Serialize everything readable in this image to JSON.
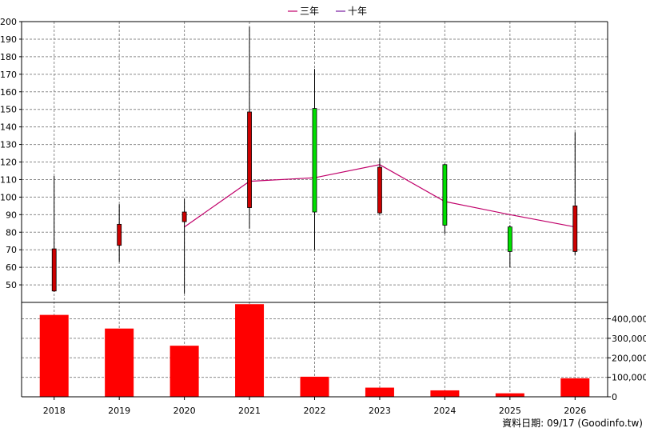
{
  "chart_data": {
    "type": "candlestick",
    "categories": [
      "2018",
      "2019",
      "2020",
      "2021",
      "2022",
      "2023",
      "2024",
      "2025",
      "2026"
    ],
    "price": {
      "ylim": [
        40,
        200
      ],
      "ticks": [
        50,
        60,
        70,
        80,
        90,
        100,
        110,
        120,
        130,
        140,
        150,
        160,
        170,
        180,
        190,
        200
      ],
      "candles": [
        {
          "open": 46.5,
          "close": 70.5,
          "high": 112,
          "low": 46,
          "direction": "up"
        },
        {
          "open": 72.5,
          "close": 84.5,
          "high": 96,
          "low": 63,
          "direction": "up"
        },
        {
          "open": 86,
          "close": 91.5,
          "high": 99,
          "low": 45,
          "direction": "up"
        },
        {
          "open": 94,
          "close": 148.5,
          "high": 197,
          "low": 82,
          "direction": "up"
        },
        {
          "open": 150.5,
          "close": 91.5,
          "high": 173,
          "low": 70,
          "direction": "down"
        },
        {
          "open": 91,
          "close": 117,
          "high": 122,
          "low": 90,
          "direction": "up"
        },
        {
          "open": 118.5,
          "close": 84,
          "high": 119,
          "low": 79,
          "direction": "down"
        },
        {
          "open": 83,
          "close": 69,
          "high": 84,
          "low": 60,
          "direction": "down"
        },
        {
          "open": 69,
          "close": 95,
          "high": 137,
          "low": 67,
          "direction": "up"
        }
      ],
      "series": [
        {
          "name": "三年",
          "color": "#c0006a",
          "values": [
            null,
            null,
            83,
            109,
            111,
            118.5,
            97.5,
            90,
            83
          ]
        },
        {
          "name": "十年",
          "color": "#7a1fa2",
          "values": [
            null,
            null,
            null,
            null,
            null,
            null,
            null,
            null,
            null
          ]
        }
      ]
    },
    "volume": {
      "ylim": [
        0,
        480000
      ],
      "ticks": [
        0,
        100000,
        200000,
        300000,
        400000
      ],
      "tick_labels": [
        "0",
        "100,000",
        "200,000",
        "300,000",
        "400,000"
      ],
      "values": [
        420000,
        350000,
        262000,
        475000,
        103000,
        47000,
        33000,
        18000,
        95000
      ]
    },
    "colors": {
      "up": "#cc0000",
      "down": "#00e000",
      "volume": "#ff0000",
      "wick": "#000000",
      "grid": "#8a8a8a"
    },
    "grid": true,
    "legend_placement": "top-center"
  },
  "footer": {
    "text": "資料日期: 09/17  (Goodinfo.tw)"
  }
}
